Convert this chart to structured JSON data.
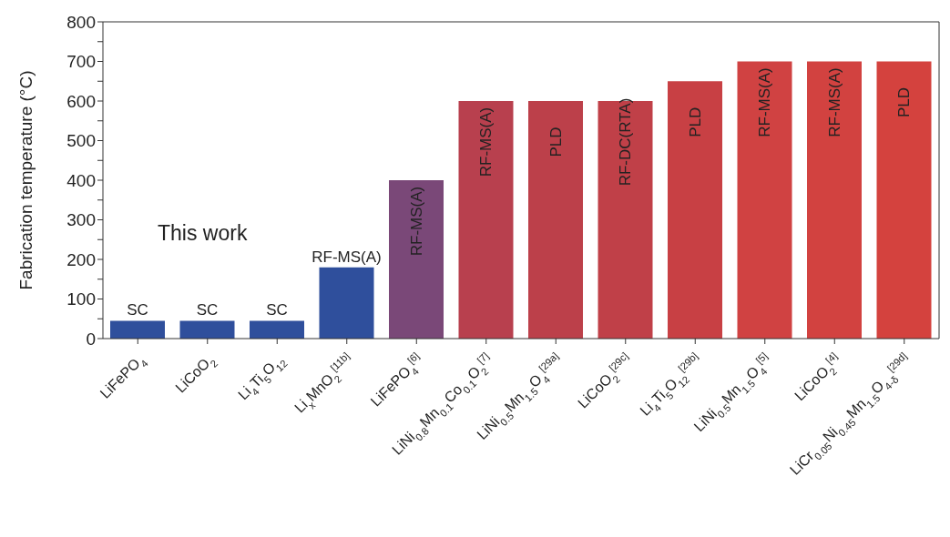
{
  "chart_data": {
    "type": "bar",
    "ylabel": "Fabrication temperature (°C)",
    "categories": [
      "LiFePO$_{4}$",
      "LiCoO$_{2}$",
      "Li$_{4}$Ti$_{5}$O$_{12}$",
      "Li$_{x}$MnO$_{2}$$^{[11b]}$",
      "LiFePO$_{4}$$^{[6]}$",
      "LiNi$_{0.8}$Mn$_{0.1}$Co$_{0.1}$O$_{2}$$^{[7]}$",
      "LiNi$_{0.5}$Mn$_{1.5}$O$_{4}$$^{[29a]}$",
      "LiCoO$_{2}$$^{[29c]}$",
      "Li$_{4}$Ti$_{5}$O$_{12}$$^{[29b]}$",
      "LiNi$_{0.5}$Mn$_{1.5}$O$_{4}$$^{[5]}$",
      "LiCoO$_{2}$$^{[4]}$",
      "LiCr$_{0.05}$Ni$_{0.45}$Mn$_{1.5}$O$_{4-δ}$$^{[29d]}$"
    ],
    "values": [
      45,
      45,
      45,
      180,
      400,
      600,
      600,
      600,
      650,
      700,
      700,
      700
    ],
    "colors": [
      "#2f4f9c",
      "#2f4f9c",
      "#2f4f9c",
      "#2f4f9c",
      "#7a4878",
      "#b8404e",
      "#bc404a",
      "#c04048",
      "#c84044",
      "#d04242",
      "#d24240",
      "#d4423e"
    ],
    "ylim": [
      0,
      800
    ],
    "yticks": [
      0,
      {
        "value": 50,
        "label": null
      },
      100,
      {
        "value": 150,
        "label": null
      },
      200,
      {
        "value": 250,
        "label": null
      },
      300,
      {
        "value": 350,
        "label": null
      },
      400,
      {
        "value": 450,
        "label": null
      },
      500,
      {
        "value": 550,
        "label": null
      },
      600,
      {
        "value": 650,
        "label": null
      },
      700,
      {
        "value": 750,
        "label": null
      },
      800
    ],
    "annotations": [
      "This work",
      {
        "text": "SC",
        "x": "LiFePO$_{4}$",
        "y": 45
      },
      {
        "text": "SC",
        "x": "LiCoO$_{2}$",
        "y": 45
      },
      {
        "text": "SC",
        "x": "Li$_{4}$Ti$_{5}$O$_{12}$",
        "y": 45
      },
      {
        "text": "RF-MS(A)",
        "x": "Li$_{x}$MnO$_{2}$$^{[11b]}$",
        "y": 180
      },
      {
        "text": "RF-MS(A)",
        "x": "LiFePO$_{4}$$^{[6]}$",
        "y": 400
      },
      {
        "text": "RF-MS(A)",
        "x": "LiNi$_{0.8}$Mn$_{0.1}$Co$_{0.1}$O$_{2}$$^{[7]}$",
        "y": 600
      },
      {
        "text": "PLD",
        "x": "LiNi$_{0.5}$Mn$_{1.5}$O$_{4}$$^{[29a]}$",
        "y": 600
      },
      {
        "text": "RF-DC(RTA)",
        "x": "LiCoO$_{2}$$^{[29c]}$",
        "y": 600
      },
      {
        "text": "PLD",
        "x": "Li$_{4}$Ti$_{5}$O$_{12}$$^{[29b]}$",
        "y": 650
      },
      {
        "text": "RF-MS(A)",
        "x": "LiNi$_{0.5}$Mn$_{1.5}$O$_{4}$$^{[5]}$",
        "y": 700
      },
      {
        "text": "RF-MS(A)",
        "x": "LiCoO$_{2}$$^{[4]}$",
        "y": 700
      },
      {
        "text": "PLD",
        "x": "LiCr$_{0.05}$Ni$_{0.45}$Mn$_{1.5}$O$_{4-δ}$$^{[29d]}$",
        "y": 700
      }
    ]
  }
}
